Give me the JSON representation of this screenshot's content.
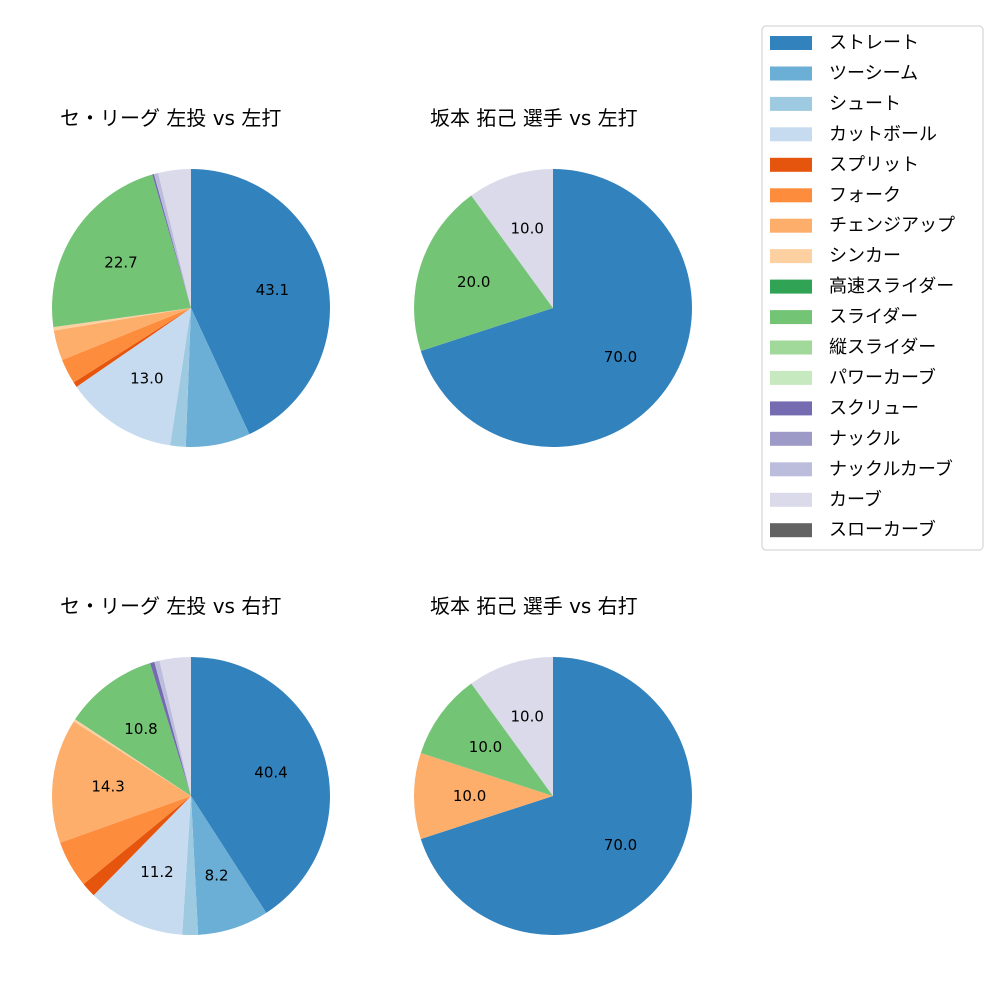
{
  "chart_data": [
    {
      "type": "pie",
      "title": "セ・リーグ 左投 vs 左打",
      "categories": [
        "ストレート",
        "ツーシーム",
        "シュート",
        "カットボール",
        "スプリット",
        "フォーク",
        "チェンジアップ",
        "シンカー",
        "高速スライダー",
        "スライダー",
        "縦スライダー",
        "パワーカーブ",
        "スクリュー",
        "ナックル",
        "ナックルカーブ",
        "カーブ",
        "スローカーブ"
      ],
      "values": [
        43.1,
        7.5,
        1.8,
        13.0,
        0.6,
        2.9,
        3.5,
        0.4,
        0.0,
        22.7,
        0.0,
        0.0,
        0.2,
        0.0,
        0.5,
        3.8,
        0.0
      ],
      "labels": [
        "43.1",
        "",
        "",
        "13.0",
        "",
        "",
        "",
        "",
        "",
        "22.7",
        "",
        "",
        "",
        "",
        "",
        "",
        ""
      ]
    },
    {
      "type": "pie",
      "title": "坂本 拓己 選手 vs 左打",
      "categories": [
        "ストレート",
        "スライダー",
        "カーブ"
      ],
      "values": [
        70.0,
        20.0,
        10.0
      ],
      "labels": [
        "70.0",
        "20.0",
        "10.0"
      ]
    },
    {
      "type": "pie",
      "title": "セ・リーグ 左投 vs 右打",
      "categories": [
        "ストレート",
        "ツーシーム",
        "シュート",
        "カットボール",
        "スプリット",
        "フォーク",
        "チェンジアップ",
        "シンカー",
        "高速スライダー",
        "スライダー",
        "縦スライダー",
        "パワーカーブ",
        "スクリュー",
        "ナックル",
        "ナックルカーブ",
        "カーブ",
        "スローカーブ"
      ],
      "values": [
        40.4,
        8.2,
        1.8,
        11.2,
        1.7,
        5.4,
        14.3,
        0.3,
        0.0,
        10.8,
        0.0,
        0.0,
        0.5,
        0.0,
        0.6,
        3.6,
        0.0
      ],
      "labels": [
        "40.4",
        "8.2",
        "",
        "11.2",
        "",
        "",
        "14.3",
        "",
        "",
        "10.8",
        "",
        "",
        "",
        "",
        "",
        "",
        ""
      ]
    },
    {
      "type": "pie",
      "title": "坂本 拓己 選手 vs 右打",
      "categories": [
        "ストレート",
        "チェンジアップ",
        "スライダー",
        "カーブ"
      ],
      "values": [
        70.0,
        10.0,
        10.0,
        10.0
      ],
      "labels": [
        "70.0",
        "10.0",
        "10.0",
        "10.0"
      ]
    }
  ],
  "legend": {
    "placement": "top-right",
    "entries": [
      {
        "name": "ストレート",
        "color": "#3182bd"
      },
      {
        "name": "ツーシーム",
        "color": "#6baed6"
      },
      {
        "name": "シュート",
        "color": "#9ecae1"
      },
      {
        "name": "カットボール",
        "color": "#c6dbef"
      },
      {
        "name": "スプリット",
        "color": "#e6550d"
      },
      {
        "name": "フォーク",
        "color": "#fd8d3c"
      },
      {
        "name": "チェンジアップ",
        "color": "#fdae6b"
      },
      {
        "name": "シンカー",
        "color": "#fdd0a2"
      },
      {
        "name": "高速スライダー",
        "color": "#31a354"
      },
      {
        "name": "スライダー",
        "color": "#74c476"
      },
      {
        "name": "縦スライダー",
        "color": "#a1d99b"
      },
      {
        "name": "パワーカーブ",
        "color": "#c7e9c0"
      },
      {
        "name": "スクリュー",
        "color": "#756bb1"
      },
      {
        "name": "ナックル",
        "color": "#9e9ac8"
      },
      {
        "name": "ナックルカーブ",
        "color": "#bcbddc"
      },
      {
        "name": "カーブ",
        "color": "#dadaeb"
      },
      {
        "name": "スローカーブ",
        "color": "#636363"
      }
    ]
  }
}
